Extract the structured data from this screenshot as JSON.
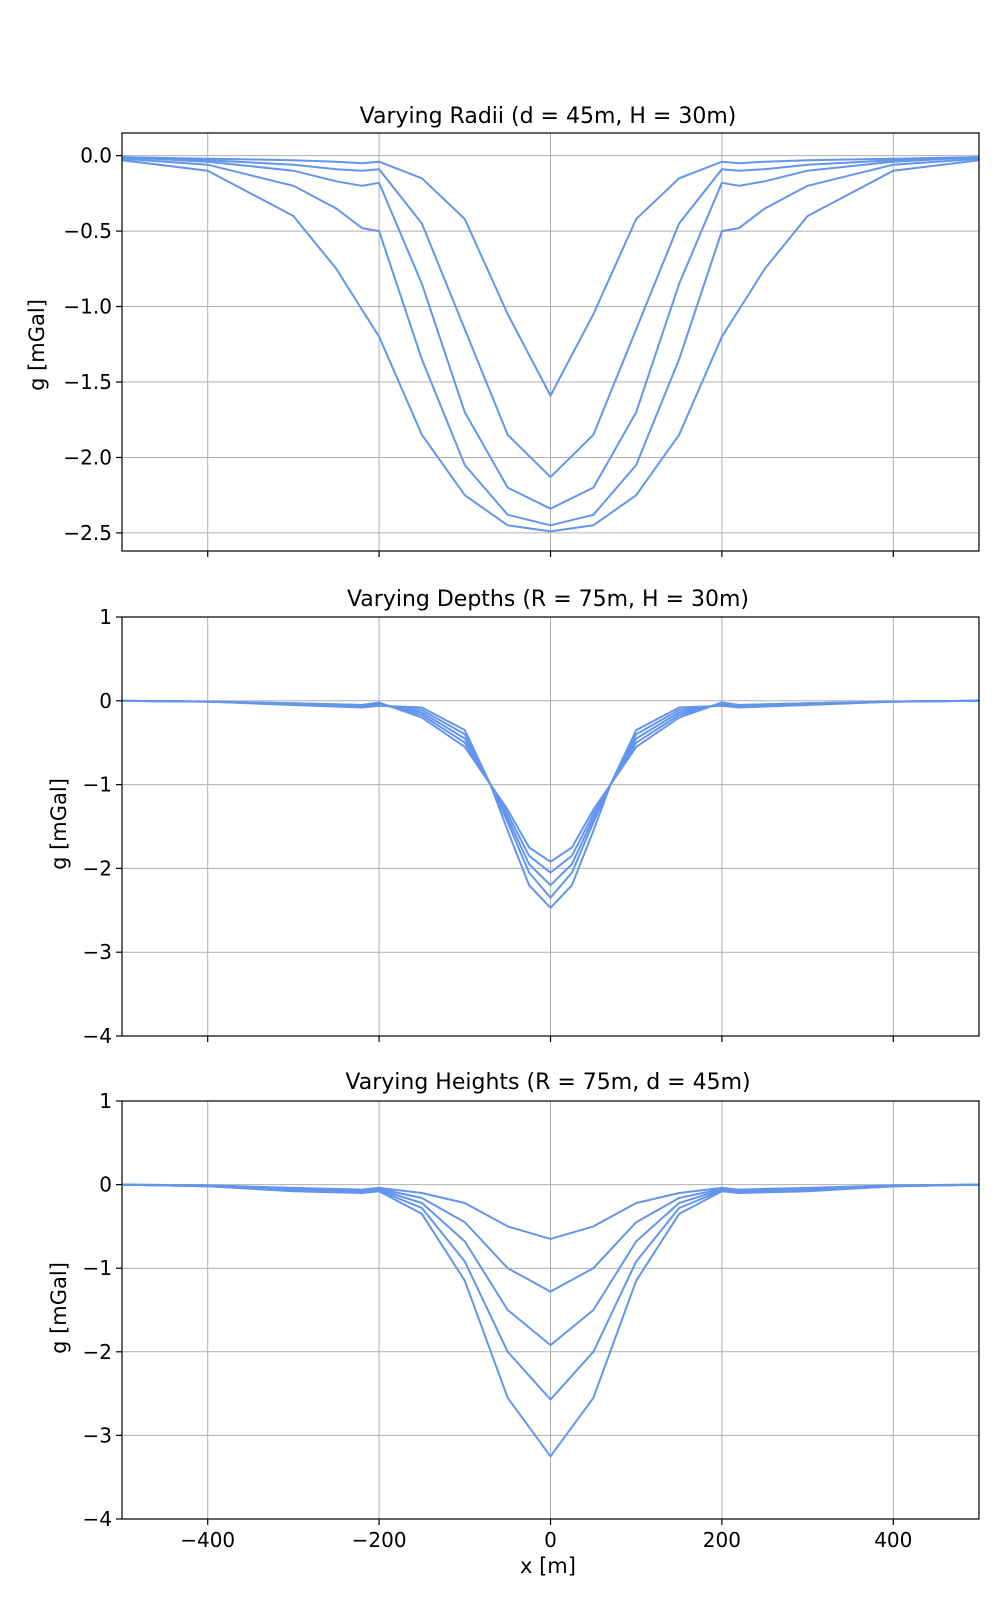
{
  "figure": {
    "xlabel": "x [m]"
  },
  "chart_data": [
    {
      "type": "line",
      "title": "Varying Radii (d = 45m, H = 30m)",
      "xlabel": "",
      "ylabel": "g [mGal]",
      "xlim": [
        -500,
        500
      ],
      "ylim": [
        -2.62,
        0.15
      ],
      "xticks": [
        -400,
        -200,
        0,
        200,
        400
      ],
      "yticks": [
        0.0,
        -0.5,
        -1.0,
        -1.5,
        -2.0,
        -2.5
      ],
      "ytick_labels": [
        "0.0",
        "−0.5",
        "−1.0",
        "−1.5",
        "−2.0",
        "−2.5"
      ],
      "show_xtick_labels": false,
      "grid": true,
      "color": "#6495ED",
      "x": [
        -500,
        -400,
        -300,
        -250,
        -220,
        -200,
        -150,
        -100,
        -50,
        0,
        50,
        100,
        150,
        200,
        220,
        250,
        300,
        400,
        500
      ],
      "series": [
        {
          "values": [
            -0.01,
            -0.02,
            -0.03,
            -0.04,
            -0.05,
            -0.04,
            -0.15,
            -0.42,
            -1.05,
            -1.59,
            -1.05,
            -0.42,
            -0.15,
            -0.04,
            -0.05,
            -0.04,
            -0.03,
            -0.02,
            -0.01
          ]
        },
        {
          "values": [
            -0.01,
            -0.03,
            -0.06,
            -0.09,
            -0.1,
            -0.09,
            -0.45,
            -1.15,
            -1.85,
            -2.13,
            -1.85,
            -1.15,
            -0.45,
            -0.09,
            -0.1,
            -0.09,
            -0.06,
            -0.03,
            -0.01
          ]
        },
        {
          "values": [
            -0.01,
            -0.04,
            -0.1,
            -0.17,
            -0.2,
            -0.18,
            -0.85,
            -1.7,
            -2.2,
            -2.34,
            -2.2,
            -1.7,
            -0.85,
            -0.18,
            -0.2,
            -0.17,
            -0.1,
            -0.04,
            -0.01
          ]
        },
        {
          "values": [
            -0.02,
            -0.06,
            -0.2,
            -0.35,
            -0.48,
            -0.5,
            -1.35,
            -2.05,
            -2.38,
            -2.45,
            -2.38,
            -2.05,
            -1.35,
            -0.5,
            -0.48,
            -0.35,
            -0.2,
            -0.06,
            -0.02
          ]
        },
        {
          "values": [
            -0.03,
            -0.1,
            -0.4,
            -0.75,
            -1.02,
            -1.2,
            -1.85,
            -2.25,
            -2.45,
            -2.49,
            -2.45,
            -2.25,
            -1.85,
            -1.2,
            -1.02,
            -0.75,
            -0.4,
            -0.1,
            -0.03
          ]
        }
      ]
    },
    {
      "type": "line",
      "title": "Varying Depths (R = 75m, H = 30m)",
      "xlabel": "",
      "ylabel": "g [mGal]",
      "xlim": [
        -500,
        500
      ],
      "ylim": [
        -4,
        1
      ],
      "xticks": [
        -400,
        -200,
        0,
        200,
        400
      ],
      "yticks": [
        1,
        0,
        -1,
        -2,
        -3,
        -4
      ],
      "ytick_labels": [
        "1",
        "0",
        "−1",
        "−2",
        "−3",
        "−4"
      ],
      "show_xtick_labels": false,
      "grid": true,
      "color": "#6495ED",
      "x": [
        -500,
        -400,
        -300,
        -220,
        -200,
        -150,
        -100,
        -70,
        -50,
        -25,
        0,
        25,
        50,
        70,
        100,
        150,
        200,
        220,
        300,
        400,
        500
      ],
      "series": [
        {
          "values": [
            0,
            -0.01,
            -0.03,
            -0.05,
            -0.02,
            -0.2,
            -0.55,
            -1.0,
            -1.3,
            -1.75,
            -1.92,
            -1.75,
            -1.3,
            -1.0,
            -0.55,
            -0.2,
            -0.02,
            -0.05,
            -0.03,
            -0.01,
            0
          ]
        },
        {
          "values": [
            0,
            -0.01,
            -0.03,
            -0.05,
            -0.03,
            -0.17,
            -0.5,
            -1.0,
            -1.35,
            -1.85,
            -2.05,
            -1.85,
            -1.35,
            -1.0,
            -0.5,
            -0.17,
            -0.03,
            -0.05,
            -0.03,
            -0.01,
            0
          ]
        },
        {
          "values": [
            0,
            -0.01,
            -0.04,
            -0.06,
            -0.04,
            -0.14,
            -0.45,
            -1.0,
            -1.4,
            -1.95,
            -2.2,
            -1.95,
            -1.4,
            -1.0,
            -0.45,
            -0.14,
            -0.04,
            -0.06,
            -0.04,
            -0.01,
            0
          ]
        },
        {
          "values": [
            0,
            -0.01,
            -0.04,
            -0.07,
            -0.05,
            -0.11,
            -0.4,
            -1.0,
            -1.45,
            -2.05,
            -2.35,
            -2.05,
            -1.45,
            -1.0,
            -0.4,
            -0.11,
            -0.05,
            -0.07,
            -0.04,
            -0.01,
            0
          ]
        },
        {
          "values": [
            0,
            -0.01,
            -0.05,
            -0.08,
            -0.06,
            -0.08,
            -0.35,
            -1.0,
            -1.55,
            -2.2,
            -2.47,
            -2.2,
            -1.55,
            -1.0,
            -0.35,
            -0.08,
            -0.06,
            -0.08,
            -0.05,
            -0.01,
            0
          ]
        }
      ]
    },
    {
      "type": "line",
      "title": "Varying Heights (R = 75m, d = 45m)",
      "xlabel": "x [m]",
      "ylabel": "g [mGal]",
      "xlim": [
        -500,
        500
      ],
      "ylim": [
        -4,
        1
      ],
      "xticks": [
        -400,
        -200,
        0,
        200,
        400
      ],
      "yticks": [
        1,
        0,
        -1,
        -2,
        -3,
        -4
      ],
      "ytick_labels": [
        "1",
        "0",
        "−1",
        "−2",
        "−3",
        "−4"
      ],
      "xtick_labels": [
        "−400",
        "−200",
        "0",
        "200",
        "400"
      ],
      "show_xtick_labels": true,
      "grid": true,
      "color": "#6495ED",
      "x": [
        -500,
        -400,
        -300,
        -220,
        -200,
        -150,
        -100,
        -50,
        0,
        50,
        100,
        150,
        200,
        220,
        300,
        400,
        500
      ],
      "series": [
        {
          "values": [
            0,
            -0.01,
            -0.04,
            -0.06,
            -0.04,
            -0.1,
            -0.22,
            -0.5,
            -0.65,
            -0.5,
            -0.22,
            -0.1,
            -0.04,
            -0.06,
            -0.04,
            -0.01,
            0
          ]
        },
        {
          "values": [
            0,
            -0.01,
            -0.05,
            -0.07,
            -0.05,
            -0.16,
            -0.45,
            -1.0,
            -1.28,
            -1.0,
            -0.45,
            -0.16,
            -0.05,
            -0.07,
            -0.05,
            -0.01,
            0
          ]
        },
        {
          "values": [
            0,
            -0.02,
            -0.06,
            -0.08,
            -0.06,
            -0.22,
            -0.68,
            -1.5,
            -1.92,
            -1.5,
            -0.68,
            -0.22,
            -0.06,
            -0.08,
            -0.06,
            -0.02,
            0
          ]
        },
        {
          "values": [
            0,
            -0.02,
            -0.07,
            -0.09,
            -0.07,
            -0.28,
            -0.92,
            -2.0,
            -2.57,
            -2.0,
            -0.92,
            -0.28,
            -0.07,
            -0.09,
            -0.07,
            -0.02,
            0
          ]
        },
        {
          "values": [
            0,
            -0.02,
            -0.08,
            -0.1,
            -0.08,
            -0.35,
            -1.15,
            -2.55,
            -3.25,
            -2.55,
            -1.15,
            -0.35,
            -0.08,
            -0.1,
            -0.08,
            -0.02,
            0
          ]
        }
      ]
    }
  ]
}
